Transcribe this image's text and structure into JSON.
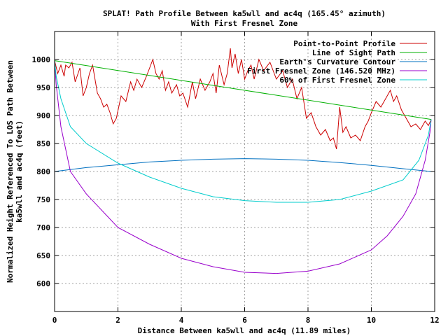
{
  "chart_data": {
    "type": "line",
    "title": "SPLAT! Path Profile Between ka5wll and ac4q (165.45° azimuth)",
    "subtitle": "With First Fresnel Zone",
    "xlabel": "Distance Between ka5wll and ac4q (11.89 miles)",
    "ylabel_line1": "Normalized Height Referenced To LOS Path Between",
    "ylabel_line2": "ka5wll and ac4q (feet)",
    "xlim": [
      0,
      12
    ],
    "ylim": [
      550,
      1050
    ],
    "xticks": [
      0,
      2,
      4,
      6,
      8,
      10,
      12
    ],
    "yticks": [
      600,
      650,
      700,
      750,
      800,
      850,
      900,
      950,
      1000
    ],
    "grid": true,
    "legend_position": "top-right",
    "series": [
      {
        "name": "Point-to-Point Profile",
        "color": "#cc0000",
        "x": [
          0,
          0.1,
          0.2,
          0.3,
          0.35,
          0.45,
          0.55,
          0.65,
          0.8,
          0.9,
          1.0,
          1.1,
          1.2,
          1.35,
          1.45,
          1.55,
          1.65,
          1.75,
          1.85,
          1.95,
          2.1,
          2.25,
          2.4,
          2.5,
          2.6,
          2.75,
          2.9,
          3.0,
          3.1,
          3.2,
          3.3,
          3.4,
          3.5,
          3.6,
          3.7,
          3.85,
          3.95,
          4.05,
          4.2,
          4.35,
          4.45,
          4.6,
          4.75,
          4.9,
          5.0,
          5.1,
          5.2,
          5.35,
          5.45,
          5.55,
          5.6,
          5.7,
          5.8,
          5.9,
          6.0,
          6.1,
          6.2,
          6.3,
          6.45,
          6.6,
          6.8,
          7.0,
          7.2,
          7.35,
          7.5,
          7.65,
          7.8,
          7.95,
          8.1,
          8.25,
          8.4,
          8.55,
          8.7,
          8.8,
          8.9,
          9.0,
          9.1,
          9.2,
          9.35,
          9.5,
          9.65,
          9.8,
          9.9,
          10.0,
          10.15,
          10.3,
          10.45,
          10.6,
          10.7,
          10.8,
          10.95,
          11.1,
          11.25,
          11.4,
          11.55,
          11.7,
          11.8,
          11.89
        ],
        "y": [
          998,
          975,
          990,
          970,
          990,
          985,
          995,
          960,
          985,
          935,
          950,
          975,
          990,
          940,
          930,
          915,
          920,
          905,
          885,
          895,
          935,
          925,
          960,
          945,
          965,
          950,
          970,
          985,
          1000,
          975,
          965,
          980,
          945,
          960,
          940,
          955,
          935,
          940,
          915,
          960,
          930,
          965,
          945,
          960,
          975,
          940,
          990,
          955,
          975,
          1020,
          985,
          1010,
          975,
          1000,
          965,
          980,
          990,
          965,
          1000,
          980,
          995,
          965,
          980,
          950,
          965,
          930,
          950,
          895,
          905,
          880,
          865,
          875,
          855,
          860,
          840,
          915,
          870,
          880,
          860,
          865,
          855,
          880,
          890,
          905,
          925,
          915,
          930,
          945,
          925,
          935,
          910,
          895,
          880,
          885,
          875,
          890,
          882,
          893
        ]
      },
      {
        "name": "Line of Sight Path",
        "color": "#00b000",
        "x": [
          0,
          11.89
        ],
        "y": [
          998,
          893
        ]
      },
      {
        "name": "Earth's Curvature Contour",
        "color": "#0070c0",
        "x": [
          0,
          1,
          2,
          3,
          4,
          5,
          6,
          7,
          8,
          9,
          10,
          11,
          11.89
        ],
        "y": [
          800,
          807,
          812,
          817,
          820,
          822,
          823,
          822,
          820,
          816,
          811,
          805,
          800
        ]
      },
      {
        "name": "First Fresnel Zone (146.520 MHz)",
        "color": "#9900cc",
        "x": [
          0,
          0.05,
          0.2,
          0.5,
          1,
          1.5,
          2,
          3,
          4,
          5,
          6,
          7,
          8,
          9,
          10,
          10.5,
          11,
          11.4,
          11.7,
          11.85,
          11.89
        ],
        "y": [
          998,
          955,
          880,
          800,
          760,
          730,
          700,
          670,
          645,
          630,
          620,
          618,
          622,
          635,
          660,
          685,
          720,
          760,
          820,
          870,
          893
        ]
      },
      {
        "name": "60% of First Fresnel Zone",
        "color": "#00cccc",
        "x": [
          0,
          0.05,
          0.2,
          0.5,
          1,
          2,
          3,
          4,
          5,
          6,
          7,
          8,
          9,
          10,
          11,
          11.5,
          11.8,
          11.89
        ],
        "y": [
          998,
          970,
          930,
          880,
          850,
          815,
          790,
          770,
          755,
          748,
          745,
          745,
          750,
          765,
          785,
          820,
          865,
          893
        ]
      }
    ]
  }
}
